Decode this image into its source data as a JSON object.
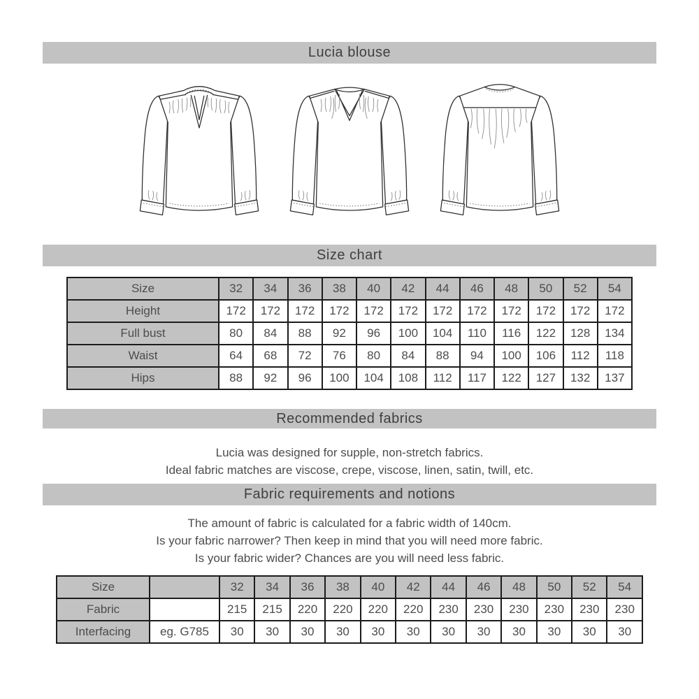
{
  "page": {
    "title": "Lucia blouse"
  },
  "sections": {
    "size_chart": {
      "title": "Size chart"
    },
    "recommended_fabrics": {
      "title": "Recommended fabrics",
      "lines": [
        "Lucia was designed for supple, non-stretch fabrics.",
        "Ideal fabric matches are viscose, crepe, viscose, linen, satin, twill, etc."
      ]
    },
    "fabric_requirements": {
      "title": "Fabric requirements and notions",
      "lines": [
        "The amount of fabric is calculated for a fabric width of 140cm.",
        "Is your fabric narrower? Then keep in mind that you will need more fabric.",
        "Is your fabric wider? Chances are you will need less fabric."
      ]
    }
  },
  "size_chart_table": {
    "rows": [
      {
        "cells": [
          "Size",
          "32",
          "34",
          "36",
          "38",
          "40",
          "42",
          "44",
          "46",
          "48",
          "50",
          "52",
          "54"
        ],
        "shaded": [
          true,
          true,
          true,
          true,
          true,
          true,
          true,
          true,
          true,
          true,
          true,
          true,
          true
        ]
      },
      {
        "cells": [
          "Height",
          "172",
          "172",
          "172",
          "172",
          "172",
          "172",
          "172",
          "172",
          "172",
          "172",
          "172",
          "172"
        ],
        "shaded": [
          true,
          false,
          false,
          false,
          false,
          false,
          false,
          false,
          false,
          false,
          false,
          false,
          false
        ]
      },
      {
        "cells": [
          "Full bust",
          "80",
          "84",
          "88",
          "92",
          "96",
          "100",
          "104",
          "110",
          "116",
          "122",
          "128",
          "134"
        ],
        "shaded": [
          true,
          false,
          false,
          false,
          false,
          false,
          false,
          false,
          false,
          false,
          false,
          false,
          false
        ]
      },
      {
        "cells": [
          "Waist",
          "64",
          "68",
          "72",
          "76",
          "80",
          "84",
          "88",
          "94",
          "100",
          "106",
          "112",
          "118"
        ],
        "shaded": [
          true,
          false,
          false,
          false,
          false,
          false,
          false,
          false,
          false,
          false,
          false,
          false,
          false
        ]
      },
      {
        "cells": [
          "Hips",
          "88",
          "92",
          "96",
          "100",
          "104",
          "108",
          "112",
          "117",
          "122",
          "127",
          "132",
          "137"
        ],
        "shaded": [
          true,
          false,
          false,
          false,
          false,
          false,
          false,
          false,
          false,
          false,
          false,
          false,
          false
        ]
      }
    ]
  },
  "requirements_table": {
    "rows": [
      {
        "cells": [
          "Size",
          "",
          "32",
          "34",
          "36",
          "38",
          "40",
          "42",
          "44",
          "46",
          "48",
          "50",
          "52",
          "54"
        ],
        "shaded": [
          true,
          true,
          true,
          true,
          true,
          true,
          true,
          true,
          true,
          true,
          true,
          true,
          true,
          true
        ]
      },
      {
        "cells": [
          "Fabric",
          "",
          "215",
          "215",
          "220",
          "220",
          "220",
          "220",
          "230",
          "230",
          "230",
          "230",
          "230",
          "230"
        ],
        "shaded": [
          true,
          false,
          false,
          false,
          false,
          false,
          false,
          false,
          false,
          false,
          false,
          false,
          false,
          false
        ]
      },
      {
        "cells": [
          "Interfacing",
          "eg. G785",
          "30",
          "30",
          "30",
          "30",
          "30",
          "30",
          "30",
          "30",
          "30",
          "30",
          "30",
          "30"
        ],
        "shaded": [
          true,
          false,
          false,
          false,
          false,
          false,
          false,
          false,
          false,
          false,
          false,
          false,
          false,
          false
        ]
      }
    ]
  },
  "illustrations": [
    {
      "name": "front view with split-neck band collar"
    },
    {
      "name": "front view with v-neck"
    },
    {
      "name": "back view with yoke"
    }
  ],
  "colors": {
    "bar_gray": "#c2c2c2",
    "table_border": "#1c1c1c",
    "text": "#4c4c4c"
  }
}
